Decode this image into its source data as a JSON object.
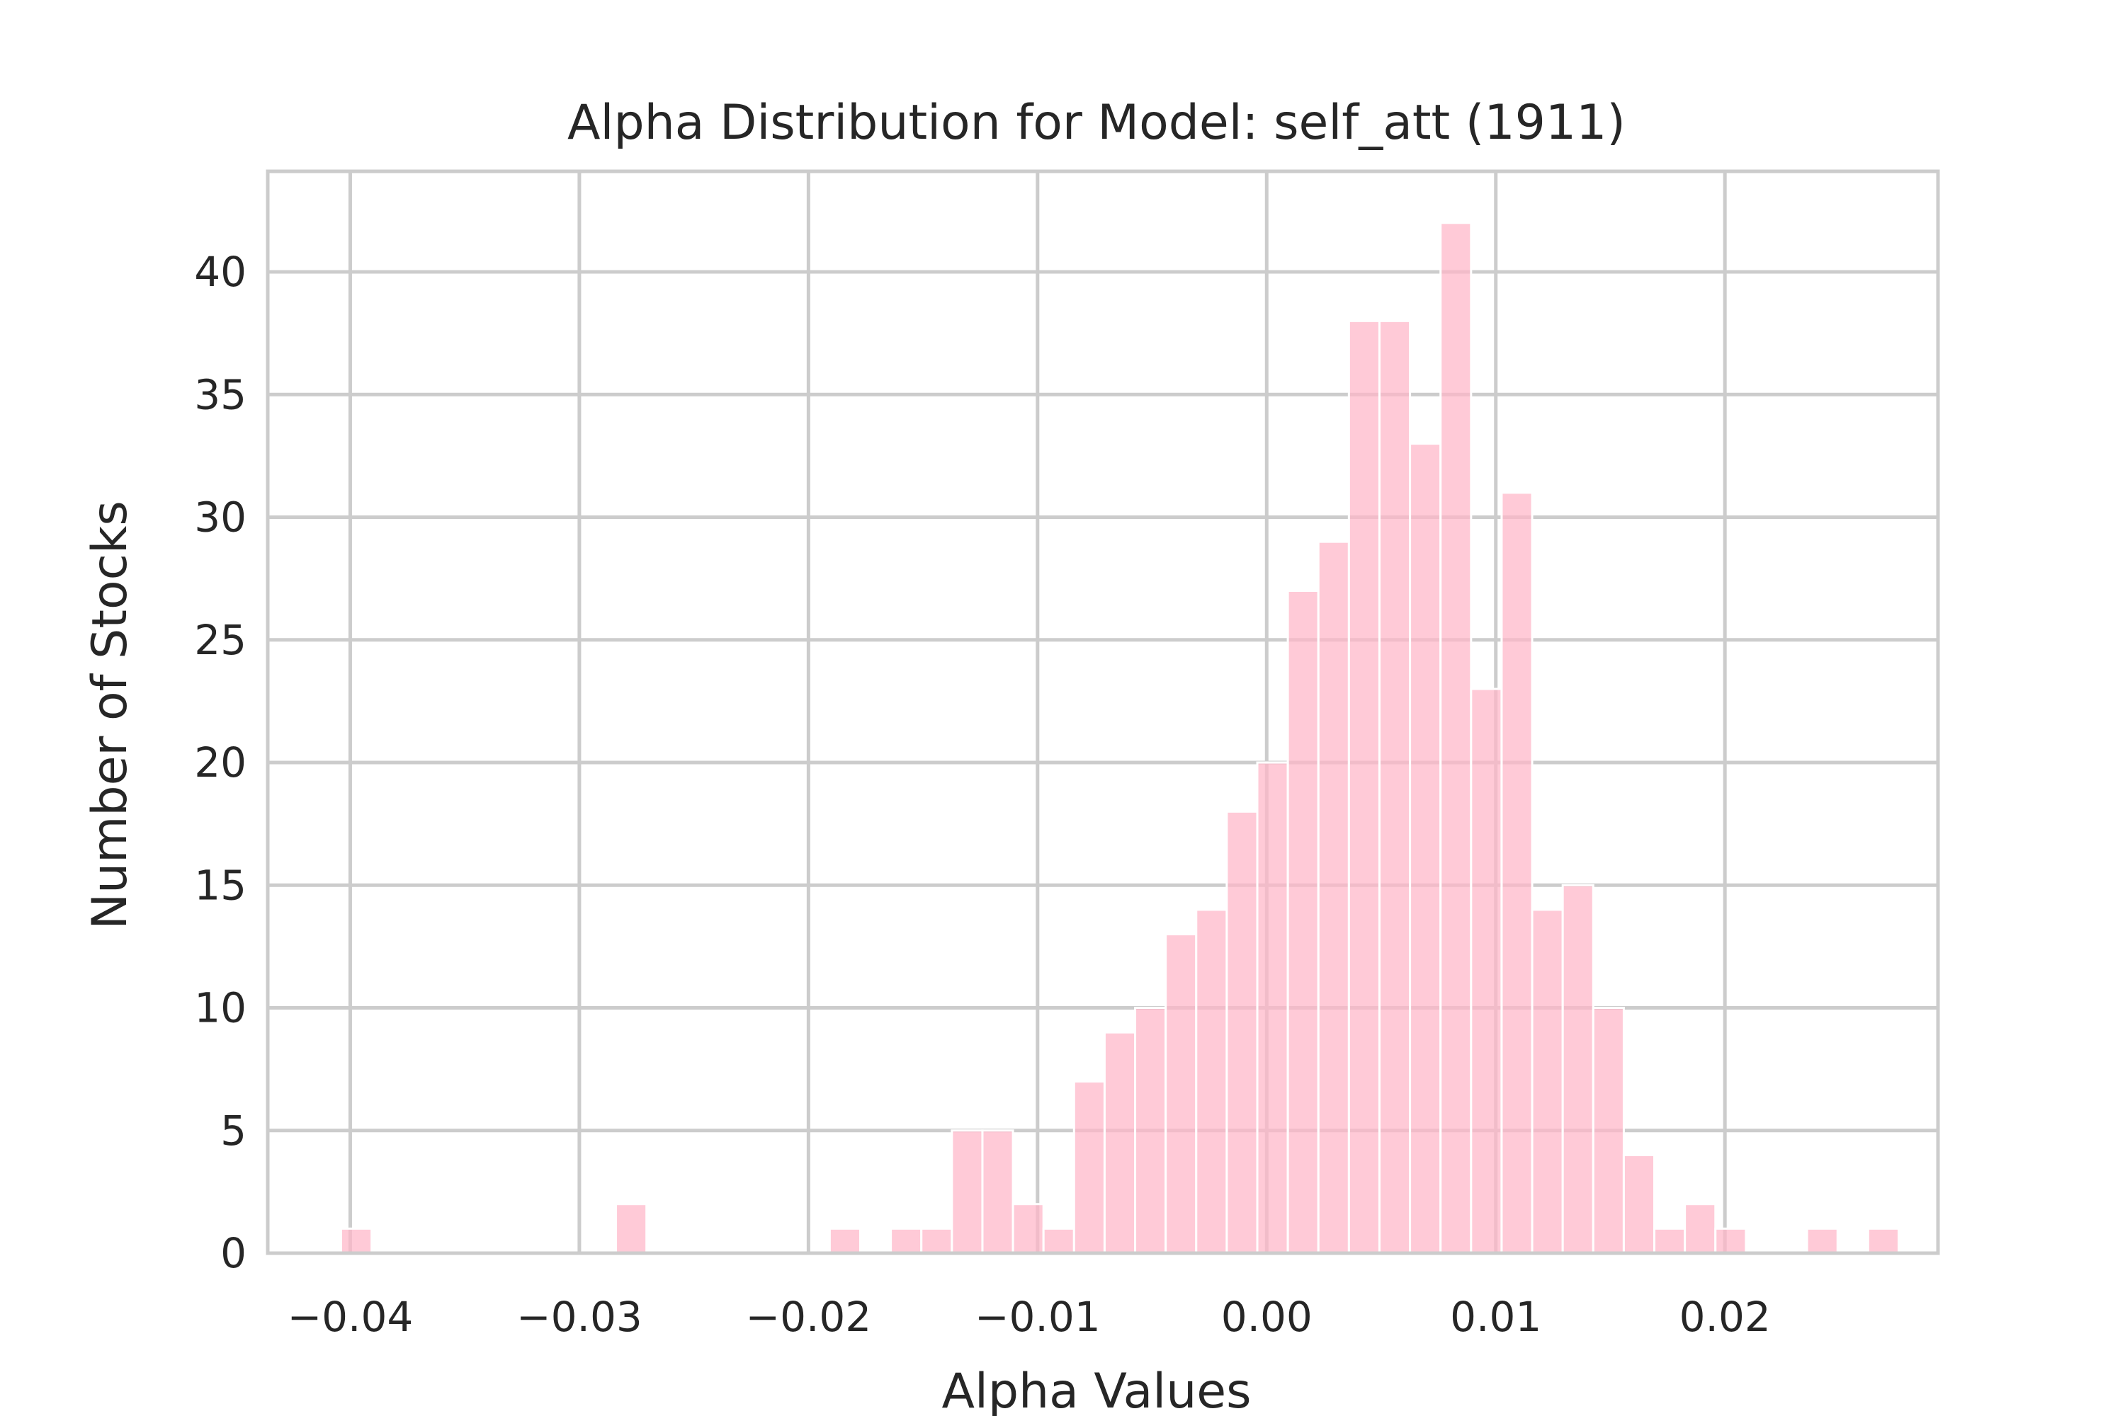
{
  "chart_data": {
    "type": "bar",
    "title": "Alpha Distribution for Model: self_att (1911)",
    "xlabel": "Alpha Values",
    "ylabel": "Number of Stocks",
    "xlim": [
      -0.0436,
      0.0293
    ],
    "ylim": [
      0,
      44.1
    ],
    "grid": true,
    "bar_color": "#ffb6c8",
    "grid_color": "#cccccc",
    "x_ticks": [
      -0.04,
      -0.03,
      -0.02,
      -0.01,
      0.0,
      0.01,
      0.02
    ],
    "x_tick_labels": [
      "−0.04",
      "−0.03",
      "−0.02",
      "−0.01",
      "0.00",
      "0.01",
      "0.02"
    ],
    "y_ticks": [
      0,
      5,
      10,
      15,
      20,
      25,
      30,
      35,
      40
    ],
    "y_tick_labels": [
      "0",
      "5",
      "10",
      "15",
      "20",
      "25",
      "30",
      "35",
      "40"
    ],
    "bins": {
      "start": -0.0404,
      "width": 0.001333,
      "counts": [
        1,
        0,
        0,
        0,
        0,
        0,
        0,
        0,
        0,
        2,
        0,
        0,
        0,
        0,
        0,
        0,
        1,
        0,
        1,
        1,
        5,
        5,
        2,
        1,
        7,
        9,
        10,
        13,
        14,
        18,
        20,
        27,
        29,
        38,
        38,
        33,
        42,
        23,
        31,
        14,
        15,
        10,
        4,
        1,
        2,
        1,
        0,
        0,
        1,
        0,
        1
      ]
    }
  }
}
